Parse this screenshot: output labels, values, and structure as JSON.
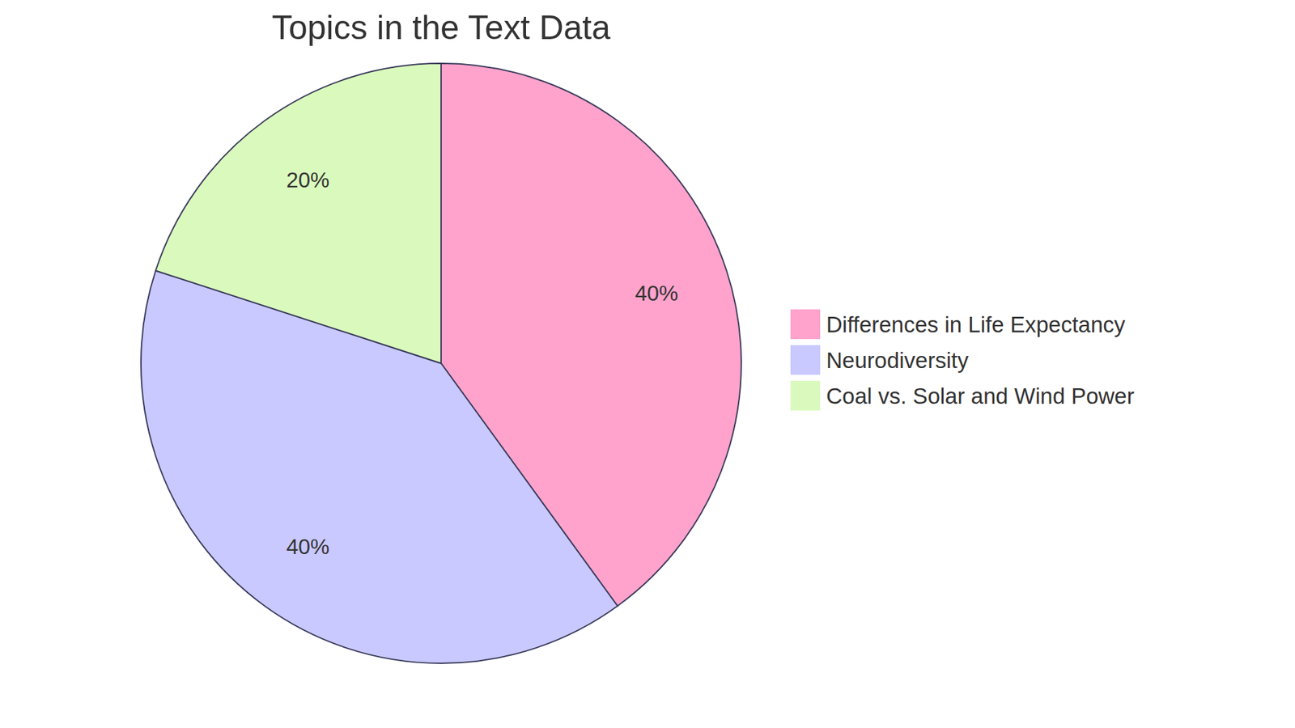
{
  "chart_data": {
    "type": "pie",
    "title": "Topics in the Text Data",
    "categories": [
      "Differences in Life Expectancy",
      "Neurodiversity",
      "Coal vs. Solar and Wind Power"
    ],
    "values": [
      40,
      40,
      20
    ],
    "value_labels": [
      "40%",
      "40%",
      "20%"
    ],
    "colors": [
      "#ffa3cc",
      "#c9c9ff",
      "#dafabd"
    ],
    "data_labels": true,
    "legend": "right"
  }
}
